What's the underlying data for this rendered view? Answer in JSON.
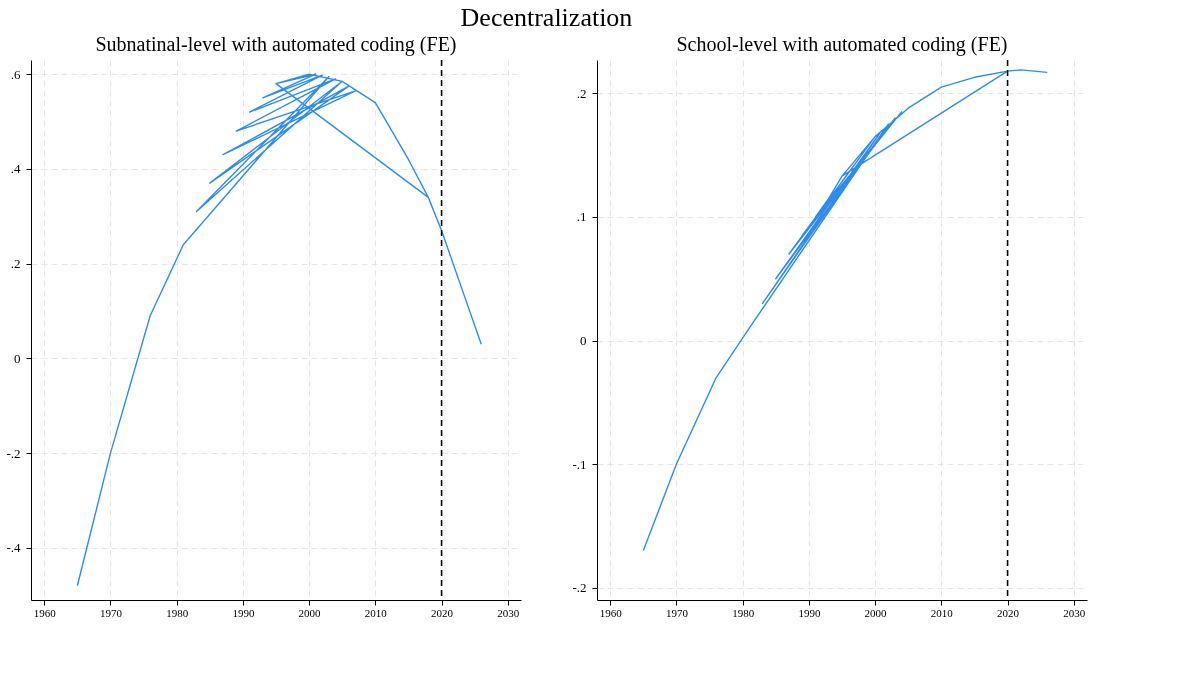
{
  "chart_data": [
    {
      "type": "line",
      "title": "Decentralization",
      "subtitle": "Subnatinal-level with automated coding (FE)",
      "series": [
        {
          "color": "#2e8bf0",
          "x": [
            1965,
            1970,
            1976,
            1981,
            2003,
            1983,
            2005,
            1985,
            2006,
            1987,
            2007,
            1989,
            2004,
            1991,
            2002,
            1993,
            2001,
            1995,
            2000,
            2005,
            2010,
            2015,
            2018,
            1995,
            2018,
            2020,
            2023,
            2026
          ],
          "values": [
            -0.48,
            -0.2,
            0.09,
            0.24,
            0.595,
            0.31,
            0.585,
            0.37,
            0.575,
            0.43,
            0.565,
            0.48,
            0.59,
            0.52,
            0.598,
            0.55,
            0.6,
            0.58,
            0.6,
            0.585,
            0.54,
            0.42,
            0.34,
            0.58,
            0.34,
            0.27,
            0.15,
            0.03
          ]
        }
      ],
      "xlim": [
        1958,
        2032
      ],
      "xticks": [
        1960,
        1970,
        1980,
        1990,
        2000,
        2010,
        2020,
        2030
      ],
      "ylim": [
        -0.51,
        0.63
      ],
      "yticks": [
        {
          "value": -0.4,
          "label": "-.4"
        },
        {
          "value": -0.2,
          "label": "-.2"
        },
        0,
        {
          "value": 0.2,
          "label": ".2"
        },
        {
          "value": 0.4,
          "label": ".4"
        },
        {
          "value": 0.6,
          "label": ".6"
        }
      ],
      "grid": true,
      "ref_lines": [
        {
          "axis": "x",
          "value": 2020,
          "color": "#000000",
          "line_style": "dashed"
        }
      ]
    },
    {
      "type": "line",
      "subtitle": "School-level with automated coding (FE)",
      "series": [
        {
          "color": "#2e8bf0",
          "x": [
            1965,
            1970,
            1976,
            1981,
            2002,
            1983,
            2001,
            1985,
            2003,
            1987,
            2000,
            1989,
            2004,
            1991,
            1993,
            1995,
            2000,
            2005,
            2010,
            2015,
            2020,
            1995,
            2020,
            2022,
            2026
          ],
          "values": [
            -0.17,
            -0.1,
            -0.03,
            0.01,
            0.175,
            0.03,
            0.17,
            0.05,
            0.18,
            0.07,
            0.165,
            0.085,
            0.185,
            0.1,
            0.115,
            0.133,
            0.165,
            0.188,
            0.205,
            0.213,
            0.218,
            0.133,
            0.218,
            0.219,
            0.217
          ]
        }
      ],
      "xlim": [
        1958,
        2032
      ],
      "xticks": [
        1960,
        1970,
        1980,
        1990,
        2000,
        2010,
        2020,
        2030
      ],
      "ylim": [
        -0.21,
        0.227
      ],
      "yticks": [
        {
          "value": -0.2,
          "label": "-.2"
        },
        {
          "value": -0.1,
          "label": "-.1"
        },
        0,
        {
          "value": 0.1,
          "label": ".1"
        },
        {
          "value": 0.2,
          "label": ".2"
        }
      ],
      "grid": true,
      "ref_lines": [
        {
          "axis": "x",
          "value": 2020,
          "color": "#000000",
          "line_style": "dashed"
        }
      ]
    }
  ]
}
